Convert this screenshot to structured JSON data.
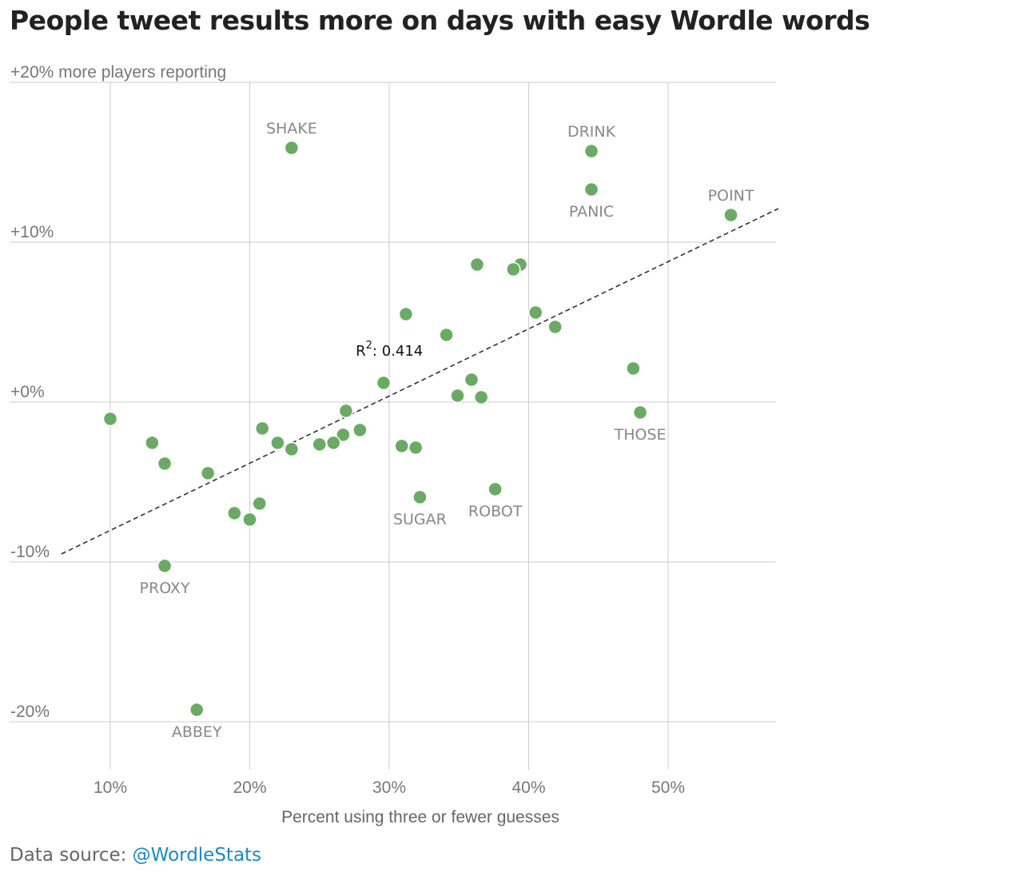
{
  "title": "People tweet results more on days with easy Wordle words",
  "source": {
    "label": "Data source:",
    "link_text": "@WordleStats"
  },
  "chart_data": {
    "type": "scatter",
    "title": "People tweet results more on days with easy Wordle words",
    "xlabel": "Percent using three or fewer guesses",
    "ylabel": "+20% more players reporting",
    "xlim": [
      2.8,
      57.9
    ],
    "ylim": [
      -23,
      20
    ],
    "x_ticks": [
      10,
      20,
      30,
      40,
      50
    ],
    "x_tick_labels": [
      "10%",
      "20%",
      "30%",
      "40%",
      "50%"
    ],
    "y_ticks": [
      20,
      10,
      0,
      -10,
      -20
    ],
    "y_tick_labels": [
      "+20% more players reporting",
      "+10%",
      "+0%",
      "-10%",
      "-20%"
    ],
    "grid": true,
    "marker_color": "#6aaa64",
    "trendline": {
      "style": "dashed",
      "color": "#333333",
      "x": [
        6.5,
        57.9
      ],
      "y": [
        -9.5,
        12.1
      ],
      "annotation": {
        "base": "R",
        "superscript": "2",
        "rest": ": 0.414",
        "x": 27.6,
        "y": 2.9
      }
    },
    "points": [
      {
        "x": 23.0,
        "y": 15.9,
        "label": "SHAKE"
      },
      {
        "x": 44.5,
        "y": 15.7,
        "label": "DRINK"
      },
      {
        "x": 44.5,
        "y": 13.3,
        "label": "PANIC"
      },
      {
        "x": 54.5,
        "y": 11.7,
        "label": "POINT"
      },
      {
        "x": 36.3,
        "y": 8.6,
        "label": ""
      },
      {
        "x": 39.4,
        "y": 8.6,
        "label": ""
      },
      {
        "x": 38.9,
        "y": 8.3,
        "label": ""
      },
      {
        "x": 31.2,
        "y": 5.5,
        "label": ""
      },
      {
        "x": 40.5,
        "y": 5.6,
        "label": ""
      },
      {
        "x": 41.9,
        "y": 4.7,
        "label": ""
      },
      {
        "x": 34.1,
        "y": 4.2,
        "label": ""
      },
      {
        "x": 47.5,
        "y": 2.1,
        "label": ""
      },
      {
        "x": 29.6,
        "y": 1.2,
        "label": ""
      },
      {
        "x": 35.9,
        "y": 1.4,
        "label": ""
      },
      {
        "x": 34.9,
        "y": 0.4,
        "label": ""
      },
      {
        "x": 36.6,
        "y": 0.3,
        "label": ""
      },
      {
        "x": 48.0,
        "y": -0.65,
        "label": "THOSE"
      },
      {
        "x": 26.9,
        "y": -0.55,
        "label": ""
      },
      {
        "x": 10.0,
        "y": -1.05,
        "label": ""
      },
      {
        "x": 20.9,
        "y": -1.65,
        "label": ""
      },
      {
        "x": 27.9,
        "y": -1.75,
        "label": ""
      },
      {
        "x": 26.7,
        "y": -2.05,
        "label": ""
      },
      {
        "x": 22.0,
        "y": -2.55,
        "label": ""
      },
      {
        "x": 25.0,
        "y": -2.65,
        "label": ""
      },
      {
        "x": 26.0,
        "y": -2.55,
        "label": ""
      },
      {
        "x": 13.0,
        "y": -2.55,
        "label": ""
      },
      {
        "x": 30.9,
        "y": -2.75,
        "label": ""
      },
      {
        "x": 31.9,
        "y": -2.85,
        "label": ""
      },
      {
        "x": 23.0,
        "y": -2.95,
        "label": ""
      },
      {
        "x": 13.9,
        "y": -3.85,
        "label": ""
      },
      {
        "x": 17.0,
        "y": -4.45,
        "label": ""
      },
      {
        "x": 37.6,
        "y": -5.45,
        "label": "ROBOT"
      },
      {
        "x": 32.2,
        "y": -5.95,
        "label": "SUGAR"
      },
      {
        "x": 20.7,
        "y": -6.35,
        "label": ""
      },
      {
        "x": 18.9,
        "y": -6.95,
        "label": ""
      },
      {
        "x": 20.0,
        "y": -7.35,
        "label": ""
      },
      {
        "x": 13.9,
        "y": -10.25,
        "label": "PROXY"
      },
      {
        "x": 16.2,
        "y": -19.25,
        "label": "ABBEY"
      }
    ]
  }
}
